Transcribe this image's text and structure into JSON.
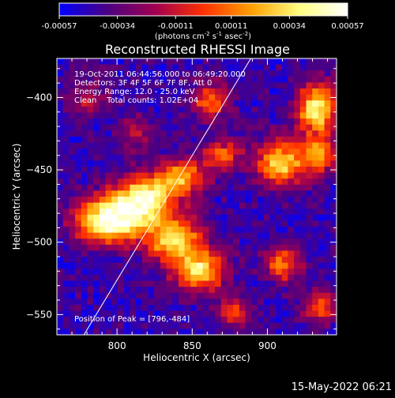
{
  "chart_data": {
    "type": "heatmap",
    "title": "Reconstructed RHESSI Image",
    "xlabel": "Heliocentric X (arcsec)",
    "ylabel": "Heliocentric Y (arcsec)",
    "xlim": [
      760,
      946
    ],
    "ylim": [
      -564,
      -373
    ],
    "x_ticks": [
      800,
      850,
      900
    ],
    "y_ticks": [
      -400,
      -450,
      -500,
      -550
    ],
    "colorbar": {
      "range": [
        -0.00057,
        0.00057
      ],
      "ticks": [
        "-0.00057",
        "-0.00034",
        "-0.00011",
        "0.00011",
        "0.00034",
        "0.00057"
      ],
      "ticks_values": [
        -0.00057,
        -0.00034,
        -0.00011,
        0.00011,
        0.00034,
        0.00057
      ],
      "unit_prefix": "(photons cm",
      "unit_exp1": "-2",
      "unit_mid1": " s",
      "unit_exp2": "-1",
      "unit_mid2": " asec",
      "unit_exp3": "-2",
      "unit_suffix": ")",
      "colors": [
        "#0000ff",
        "#4b0082",
        "#a00050",
        "#ff3000",
        "#ffa000",
        "#ffff80",
        "#ffffff"
      ]
    },
    "annotations": {
      "time_range": "19-Oct-2011 06:44:56.000 to 06:49:20.000",
      "detectors": "Detectors: 3F 4F 5F 6F 7F 8F, Att 0",
      "energy_range": "Energy Range: 12.0 - 25.0 keV",
      "method_counts": "Clean    Total counts: 1.02E+04",
      "peak": "Position of Peak = [796,-484]"
    },
    "limb_line": [
      [
        778,
        -564
      ],
      [
        889,
        -373
      ]
    ],
    "sources": [
      {
        "x": 795,
        "y": -485,
        "sx": 16,
        "sy": 11,
        "amp": 1.0
      },
      {
        "x": 818,
        "y": -470,
        "sx": 14,
        "sy": 11,
        "amp": 0.85
      },
      {
        "x": 838,
        "y": -498,
        "sx": 13,
        "sy": 11,
        "amp": 0.75
      },
      {
        "x": 855,
        "y": -520,
        "sx": 12,
        "sy": 10,
        "amp": 0.75
      },
      {
        "x": 843,
        "y": -455,
        "sx": 11,
        "sy": 9,
        "amp": 0.6
      },
      {
        "x": 870,
        "y": -440,
        "sx": 9,
        "sy": 8,
        "amp": 0.45
      },
      {
        "x": 862,
        "y": -402,
        "sx": 9,
        "sy": 9,
        "amp": 0.5
      },
      {
        "x": 910,
        "y": -445,
        "sx": 12,
        "sy": 11,
        "amp": 0.75
      },
      {
        "x": 933,
        "y": -408,
        "sx": 9,
        "sy": 12,
        "amp": 0.85
      },
      {
        "x": 935,
        "y": -440,
        "sx": 7,
        "sy": 8,
        "amp": 0.6
      },
      {
        "x": 910,
        "y": -515,
        "sx": 9,
        "sy": 9,
        "amp": 0.5
      },
      {
        "x": 878,
        "y": -548,
        "sx": 7,
        "sy": 7,
        "amp": 0.5
      },
      {
        "x": 935,
        "y": -545,
        "sx": 8,
        "sy": 8,
        "amp": 0.45
      },
      {
        "x": 812,
        "y": -425,
        "sx": 8,
        "sy": 8,
        "amp": 0.3
      },
      {
        "x": 780,
        "y": -400,
        "sx": 10,
        "sy": 10,
        "amp": 0.25
      }
    ]
  },
  "footer": {
    "timestamp": "15-May-2022 06:21"
  }
}
